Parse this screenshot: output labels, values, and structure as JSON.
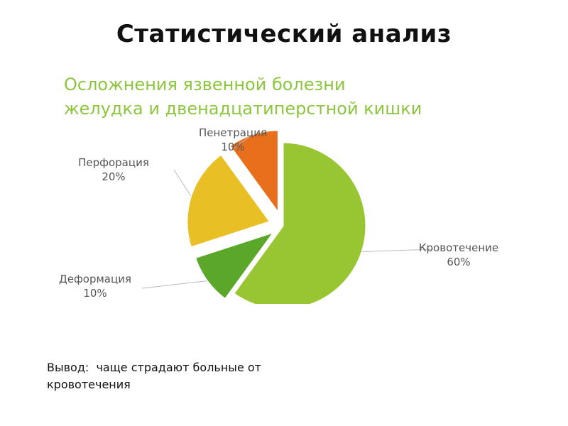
{
  "slide": {
    "title": "Статистический анализ",
    "conclusion_label": "Вывод:",
    "conclusion_text": "чаще страдают больные от кровотечения"
  },
  "chart_data": {
    "type": "pie",
    "title_lines": [
      "Осложнения язвенной болезни",
      "желудка и двенадцатиперстной кишки"
    ],
    "slices": [
      {
        "name": "Кровотечение",
        "label": "60%",
        "value": 60,
        "color": "#97c632"
      },
      {
        "name": "Деформация",
        "label": "10%",
        "value": 10,
        "color": "#5aa72a"
      },
      {
        "name": "Перфорация",
        "label": "20%",
        "value": 20,
        "color": "#e8bf24"
      },
      {
        "name": "Пенетрация",
        "label": "10%",
        "value": 10,
        "color": "#e8701c"
      }
    ],
    "colors": {
      "title": "#8cc63f",
      "label": "#555555",
      "leader": "#bbbbbb"
    }
  }
}
